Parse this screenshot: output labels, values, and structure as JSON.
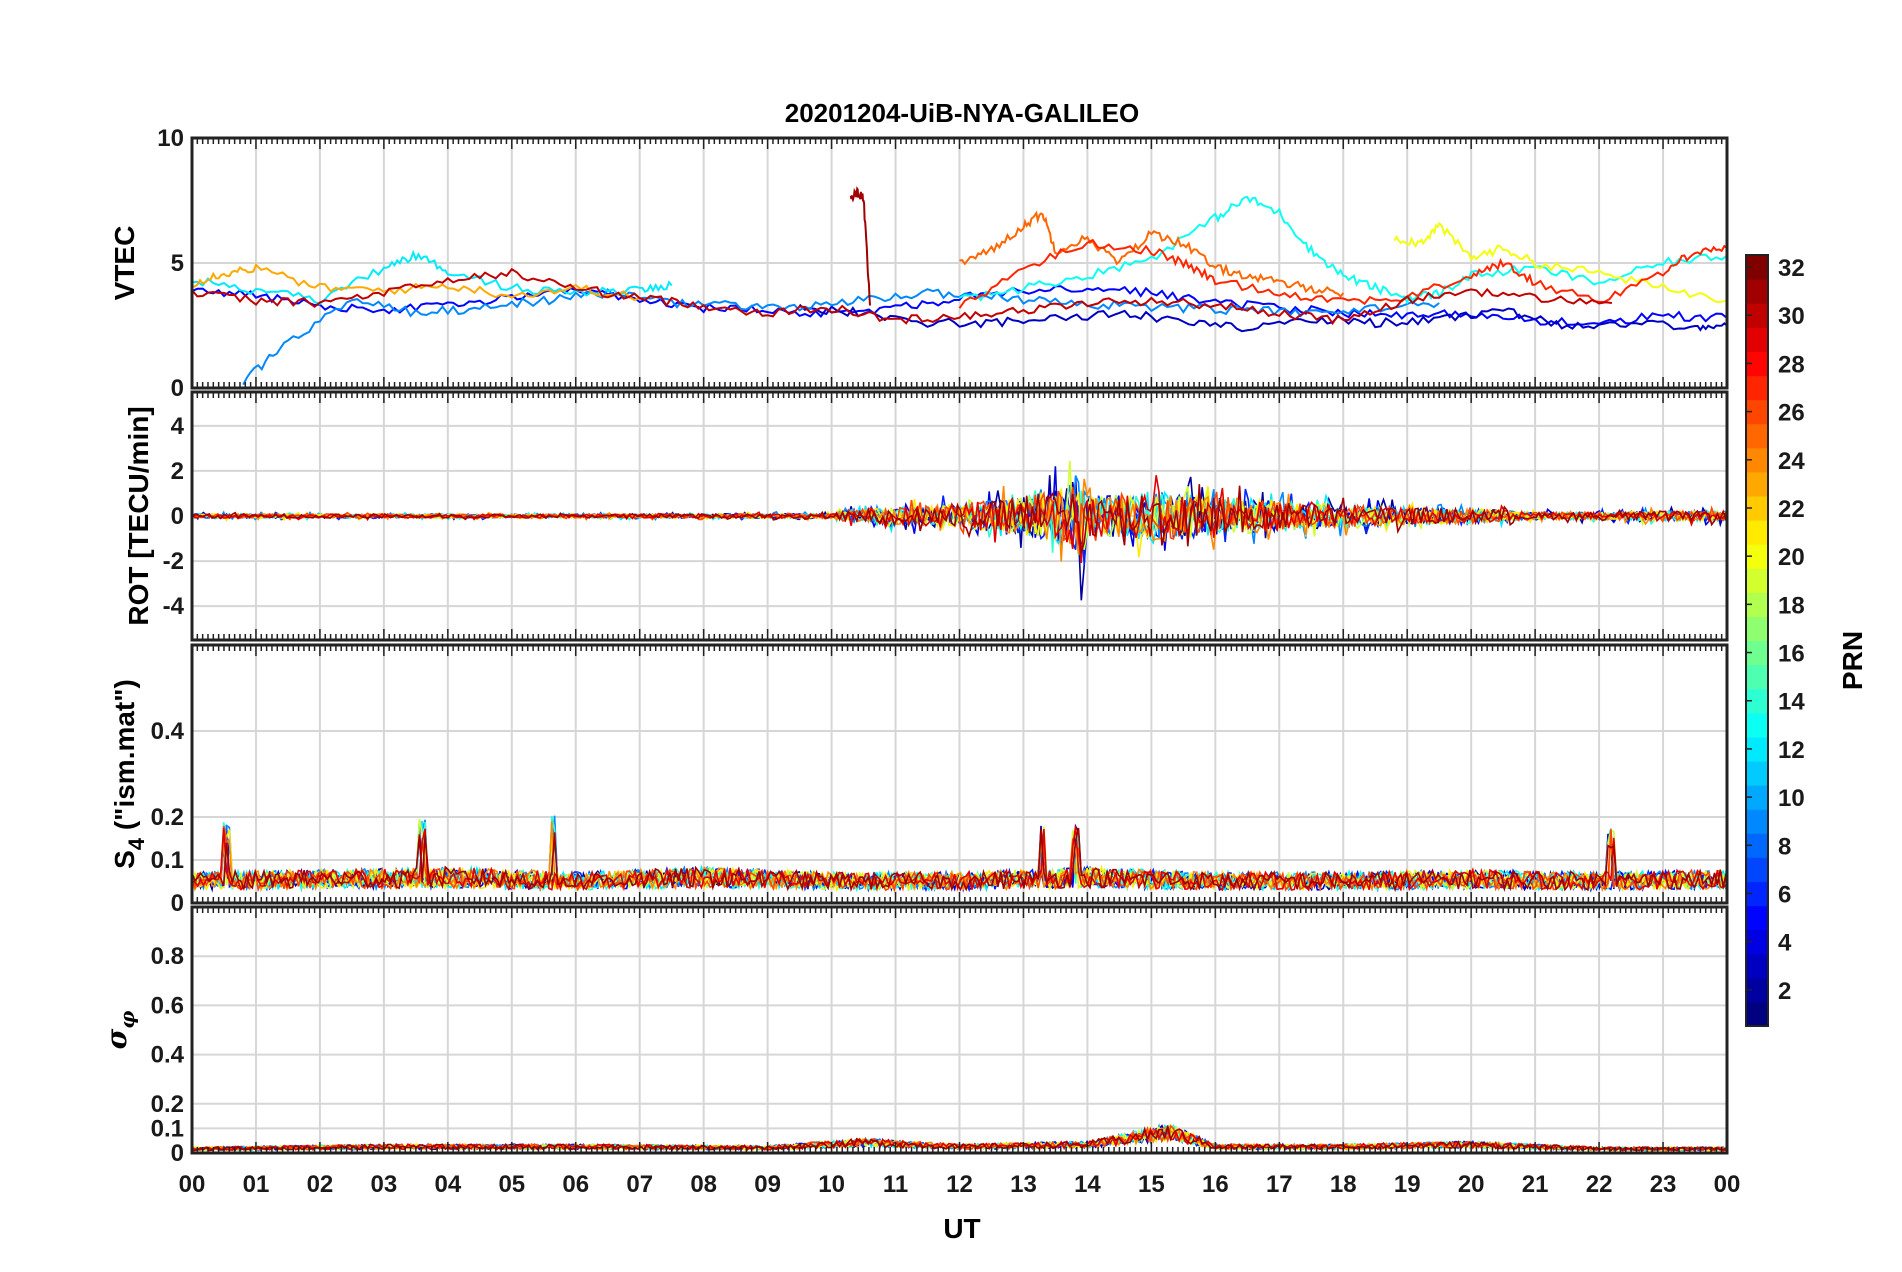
{
  "chart_data": {
    "type": "line",
    "title": "20201204-UiB-NYA-GALILEO",
    "xlabel": "UT",
    "x_ticks": [
      "00",
      "01",
      "02",
      "03",
      "04",
      "05",
      "06",
      "07",
      "08",
      "09",
      "10",
      "11",
      "12",
      "13",
      "14",
      "15",
      "16",
      "17",
      "18",
      "19",
      "20",
      "21",
      "22",
      "23",
      "00"
    ],
    "xlim_hours": [
      0,
      24
    ],
    "grid": true,
    "colorbar": {
      "label": "PRN",
      "range": [
        1,
        32
      ],
      "ticks": [
        "2",
        "4",
        "6",
        "8",
        "10",
        "12",
        "14",
        "16",
        "18",
        "20",
        "22",
        "24",
        "26",
        "28",
        "30",
        "32"
      ],
      "colormap": "jet",
      "placement": "right"
    },
    "panels": [
      {
        "ylabel": "VTEC",
        "ylim": [
          0,
          10
        ],
        "y_ticks": [
          "0",
          "5",
          "10"
        ],
        "y_tick_values": [
          0,
          5,
          10
        ],
        "series": [
          {
            "prn": 5,
            "x": [
              0,
              1,
              2,
              3,
              4,
              5,
              6,
              7,
              8,
              9,
              10,
              11,
              12,
              13,
              14,
              15,
              16,
              17,
              18,
              19,
              20,
              21,
              22,
              23,
              24
            ],
            "y": [
              4.0,
              3.7,
              3.3,
              3.1,
              3.4,
              3.6,
              3.9,
              3.5,
              3.2,
              3.1,
              3.0,
              3.2,
              3.6,
              3.9,
              4.0,
              3.8,
              3.4,
              3.2,
              3.0,
              2.9,
              3.0,
              2.7,
              2.6,
              2.9,
              2.8
            ]
          },
          {
            "prn": 3,
            "x": [
              9.5,
              10.5,
              11.5,
              12.5,
              13.5,
              14.5,
              15.5,
              16.5,
              17.5,
              18.5,
              19.5,
              20.5,
              21.5,
              22.5,
              23.5,
              24
            ],
            "y": [
              3.2,
              3.0,
              2.6,
              2.6,
              2.8,
              3.0,
              2.7,
              2.4,
              2.8,
              2.6,
              2.7,
              3.1,
              2.4,
              2.6,
              2.4,
              2.5
            ]
          },
          {
            "prn": 9,
            "x": [
              0.8,
              1.5,
              2.5,
              3.5,
              4.5,
              5.5,
              6.5,
              7.5,
              8.5,
              9.5,
              10.5,
              11.5,
              12.5,
              13.5,
              14.5,
              15.5,
              16.5,
              17.5,
              18.5,
              19.5
            ],
            "y": [
              0.3,
              1.8,
              3.6,
              3.0,
              3.2,
              3.5,
              3.8,
              3.4,
              3.3,
              3.2,
              3.5,
              3.8,
              3.7,
              3.4,
              3.3,
              3.2,
              3.1,
              3.0,
              3.2,
              3.4
            ]
          },
          {
            "prn": 12,
            "x": [
              0,
              1,
              2,
              3,
              3.5,
              4,
              5,
              6,
              7,
              7.5
            ],
            "y": [
              4.3,
              3.9,
              3.5,
              4.8,
              5.3,
              4.7,
              4.0,
              3.8,
              3.9,
              4.1
            ]
          },
          {
            "prn": 13,
            "x": [
              12,
              13,
              14,
              15,
              16,
              16.5,
              17,
              17.5,
              18,
              18.5,
              19,
              19.5,
              20,
              21,
              22,
              23,
              24
            ],
            "y": [
              3.5,
              4.0,
              4.5,
              5.2,
              6.8,
              7.6,
              7.0,
              5.5,
              4.5,
              4.0,
              3.6,
              3.8,
              4.5,
              4.8,
              4.2,
              5.0,
              5.3
            ]
          },
          {
            "prn": 20,
            "x": [
              18.8,
              19.2,
              19.5,
              20,
              20.5,
              21,
              22,
              23,
              24
            ],
            "y": [
              6.0,
              5.8,
              6.5,
              5.2,
              5.6,
              5.0,
              4.6,
              4.0,
              3.5
            ]
          },
          {
            "prn": 23,
            "x": [
              0,
              0.5,
              1,
              2,
              3,
              4,
              5,
              6,
              7
            ],
            "y": [
              4.2,
              4.6,
              4.8,
              4.0,
              3.9,
              4.1,
              3.7,
              4.0,
              3.6
            ]
          },
          {
            "prn": 25,
            "x": [
              12,
              12.5,
              13,
              13.3,
              13.5,
              14,
              14.5,
              15,
              15.5,
              16,
              16.5,
              17,
              17.5,
              18
            ],
            "y": [
              5.0,
              5.5,
              6.5,
              7.0,
              5.5,
              6.0,
              5.0,
              6.2,
              5.8,
              4.8,
              4.5,
              4.2,
              4.0,
              3.8
            ]
          },
          {
            "prn": 27,
            "x": [
              12,
              13,
              14,
              15,
              15.5,
              16,
              17,
              18,
              19,
              20,
              20.5,
              21,
              22,
              23,
              23.5,
              24
            ],
            "y": [
              3.2,
              4.8,
              5.8,
              5.5,
              5.0,
              4.3,
              3.8,
              3.5,
              3.6,
              4.5,
              5.0,
              4.2,
              3.5,
              4.6,
              5.5,
              5.6
            ]
          },
          {
            "prn": 30,
            "x": [
              0,
              1,
              2,
              3,
              4,
              5,
              6,
              7,
              8,
              9,
              10,
              11,
              12,
              13,
              14,
              15,
              16,
              17,
              18,
              19,
              20,
              21,
              22.2
            ],
            "y": [
              3.8,
              3.5,
              3.4,
              3.8,
              4.3,
              4.6,
              4.0,
              3.6,
              3.3,
              3.0,
              3.2,
              2.7,
              2.9,
              3.1,
              3.4,
              3.5,
              3.3,
              3.0,
              2.7,
              3.5,
              3.9,
              3.6,
              3.4
            ]
          },
          {
            "prn": 31,
            "x": [
              10.3,
              10.4,
              10.5,
              10.6
            ],
            "y": [
              7.6,
              7.8,
              7.6,
              3.3
            ]
          }
        ]
      },
      {
        "ylabel": "ROT [TECU/min]",
        "ylim": [
          -5.5,
          5.5
        ],
        "y_ticks": [
          "-4",
          "-2",
          "0",
          "2",
          "4"
        ],
        "y_tick_values": [
          -4,
          -2,
          0,
          2,
          4
        ],
        "noise_envelope": {
          "x": [
            0,
            6,
            10,
            10.3,
            11,
            12,
            13,
            13.7,
            13.9,
            14,
            15,
            16,
            17,
            18,
            19,
            20,
            21,
            22,
            23,
            24
          ],
          "y": [
            0.18,
            0.15,
            0.2,
            0.5,
            0.7,
            1.0,
            1.5,
            2.5,
            4.0,
            1.6,
            2.0,
            1.6,
            1.2,
            0.9,
            0.7,
            0.6,
            0.3,
            0.3,
            0.4,
            0.4
          ]
        },
        "series": []
      },
      {
        "ylabel": "S4 (\"ism.mat\")",
        "ylim": [
          0,
          0.6
        ],
        "y_ticks": [
          "0",
          "0.1",
          "0.2",
          "0.4"
        ],
        "y_tick_values": [
          0,
          0.1,
          0.2,
          0.4
        ],
        "baseline": {
          "x": [
            0,
            2,
            4,
            6,
            8,
            10,
            12,
            14,
            16,
            18,
            20,
            22,
            24
          ],
          "y": [
            0.06,
            0.065,
            0.07,
            0.06,
            0.07,
            0.06,
            0.06,
            0.07,
            0.06,
            0.06,
            0.065,
            0.06,
            0.065
          ]
        },
        "peaks": [
          {
            "x": 0.55,
            "y": 0.19
          },
          {
            "x": 3.6,
            "y": 0.2
          },
          {
            "x": 5.65,
            "y": 0.21
          },
          {
            "x": 13.3,
            "y": 0.18
          },
          {
            "x": 13.8,
            "y": 0.18
          },
          {
            "x": 22.2,
            "y": 0.18
          }
        ],
        "series": []
      },
      {
        "ylabel": "σφ",
        "ylim": [
          0,
          1
        ],
        "y_ticks": [
          "0",
          "0.1",
          "0.2",
          "0.4",
          "0.6",
          "0.8"
        ],
        "y_tick_values": [
          0,
          0.1,
          0.2,
          0.4,
          0.6,
          0.8
        ],
        "baseline": {
          "x": [
            0,
            3,
            6,
            9,
            10.5,
            12,
            14,
            15.3,
            16,
            18,
            20,
            22,
            24
          ],
          "y": [
            0.02,
            0.03,
            0.03,
            0.025,
            0.05,
            0.03,
            0.04,
            0.1,
            0.03,
            0.03,
            0.04,
            0.02,
            0.02
          ]
        },
        "series": []
      }
    ]
  }
}
